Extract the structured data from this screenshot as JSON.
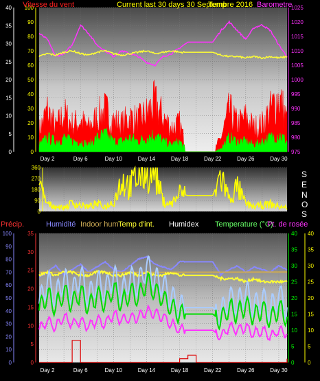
{
  "header": {
    "wind_title": "Vitesse du vent",
    "period_title": "Current last 30 days 30 Septembre 2016",
    "temp_title": "Temp",
    "baro_title": "Barometre"
  },
  "direction_letters": [
    "S",
    "E",
    "N",
    "O",
    "S"
  ],
  "legend2": {
    "precip": "Précip.",
    "humidity": "Humidité",
    "indoor_hum": "Indoor hum",
    "temp_int": "Temp d'int.",
    "humidex": "Humidex",
    "temperature": "Temperature (°C)",
    "dewpoint": "Pt. de rosée"
  },
  "colors": {
    "wind_max": "#ff0000",
    "wind_avg": "#00ff00",
    "barometer": "#ff33ff",
    "temperature": "#ffff33",
    "direction": "#ffff00",
    "humidity": "#8888ff",
    "indoor_hum": "#ccaa55",
    "humidex": "#aaccff",
    "temp_series": "#00dd00",
    "dewpoint": "#ff33ff",
    "precip": "#dd0000"
  },
  "chart_data": [
    {
      "type": "line",
      "panel": "wind-barometer",
      "title": "Vitesse du vent",
      "x_labels": [
        "Day 2",
        "Day 6",
        "Day 10",
        "Day 14",
        "Day 18",
        "Day 22",
        "Day 26",
        "Day 30"
      ],
      "xlim": [
        1,
        31
      ],
      "left_axis": {
        "ticks": [
          0,
          5,
          10,
          15,
          20,
          25,
          30,
          35,
          40
        ],
        "ylim": [
          0,
          40
        ],
        "color": "#ffffff"
      },
      "left_axis2": {
        "ticks": [
          0,
          10,
          20,
          30,
          40,
          50,
          60,
          70,
          80,
          90,
          100
        ],
        "ylim": [
          0,
          100
        ],
        "color": "#ffff00"
      },
      "right_axis": {
        "ticks": [
          975,
          980,
          985,
          990,
          995,
          1000,
          1005,
          1010,
          1015,
          1020,
          1025
        ],
        "ylim": [
          975,
          1025
        ],
        "color": "#ff33ff"
      },
      "series": [
        {
          "name": "Vitesse du vent",
          "axis": "left",
          "style": "band",
          "x": [
            1,
            2,
            3,
            4,
            5,
            6,
            7,
            8,
            9,
            10,
            11,
            12,
            13,
            14,
            15,
            16,
            17,
            18,
            19,
            20,
            21,
            22,
            23,
            24,
            25,
            26,
            27,
            28,
            29,
            30,
            31
          ],
          "values": [
            6,
            12,
            7,
            11,
            8,
            9,
            7,
            10,
            12,
            9,
            8,
            10,
            9,
            11,
            14,
            10,
            7,
            8,
            0,
            0,
            0,
            0,
            4,
            12,
            8,
            10,
            7,
            8,
            12,
            16,
            9
          ]
        },
        {
          "axis": "left",
          "style": "band",
          "x": [
            1,
            2,
            3,
            4,
            5,
            6,
            7,
            8,
            9,
            10,
            11,
            12,
            13,
            14,
            15,
            16,
            17,
            18,
            19,
            20,
            21,
            22,
            23,
            24,
            25,
            26,
            27,
            28,
            29,
            30,
            31
          ],
          "values": [
            2,
            4,
            3,
            4,
            3,
            3,
            2,
            4,
            5,
            3,
            3,
            4,
            3,
            4,
            5,
            3,
            2,
            3,
            0,
            0,
            0,
            0,
            1,
            4,
            3,
            3,
            2,
            3,
            4,
            5,
            3
          ]
        },
        {
          "name": "Barometre",
          "axis": "right",
          "style": "line",
          "x": [
            1,
            2,
            3,
            4,
            5,
            6,
            7,
            8,
            9,
            10,
            11,
            12,
            13,
            14,
            15,
            16,
            17,
            18,
            19,
            20,
            21,
            22,
            23,
            24,
            25,
            26,
            27,
            28,
            29,
            30,
            31
          ],
          "values": [
            1016,
            1014,
            1008,
            1009,
            1012,
            1019,
            1016,
            1012,
            1010,
            1008,
            1010,
            1009,
            1008,
            1006,
            1005,
            1008,
            1009,
            1011,
            1013,
            1013,
            1013,
            1013,
            1017,
            1020,
            1017,
            1014,
            1018,
            1019,
            1017,
            1012,
            1008
          ]
        },
        {
          "name": "Temp",
          "axis": "left2",
          "style": "line",
          "x": [
            1,
            2,
            3,
            4,
            5,
            6,
            7,
            8,
            9,
            10,
            11,
            12,
            13,
            14,
            15,
            16,
            17,
            18,
            19,
            20,
            21,
            22,
            23,
            24,
            25,
            26,
            27,
            28,
            29,
            30,
            31
          ],
          "values": [
            66,
            68,
            67,
            69,
            70,
            68,
            67,
            69,
            70,
            68,
            67,
            68,
            69,
            70,
            68,
            69,
            70,
            69,
            69,
            69,
            69,
            69,
            67,
            66,
            66,
            65,
            66,
            65,
            66,
            65,
            66
          ]
        }
      ]
    },
    {
      "type": "line",
      "panel": "wind-direction",
      "x_labels": [],
      "xlim": [
        1,
        31
      ],
      "left_axis": {
        "ticks": [
          0,
          90,
          180,
          270,
          360
        ],
        "ylim": [
          0,
          360
        ],
        "color": "#ffff00"
      },
      "series": [
        {
          "style": "line",
          "x": [
            1,
            2,
            3,
            4,
            5,
            6,
            7,
            8,
            9,
            10,
            11,
            12,
            13,
            14,
            15,
            16,
            17,
            18,
            19,
            20,
            21,
            22,
            23,
            24,
            25,
            26,
            27,
            28,
            29,
            30,
            31
          ],
          "values": [
            200,
            60,
            40,
            30,
            70,
            50,
            40,
            60,
            40,
            80,
            260,
            200,
            300,
            350,
            340,
            80,
            60,
            150,
            130,
            130,
            130,
            130,
            300,
            100,
            200,
            60,
            40,
            50,
            60,
            40,
            30
          ]
        }
      ]
    },
    {
      "type": "line",
      "panel": "temperature-humidity",
      "x_labels": [
        "Day 2",
        "Day 6",
        "Day 10",
        "Day 14",
        "Day 18",
        "Day 22",
        "Day 26",
        "Day 30"
      ],
      "xlim": [
        1,
        31
      ],
      "left_axis": {
        "ticks": [
          0,
          10,
          20,
          30,
          40,
          50,
          60,
          70,
          80,
          90,
          100
        ],
        "ylim": [
          0,
          100
        ],
        "color": "#8888ff"
      },
      "left_axis2": {
        "ticks": [
          0,
          5,
          10,
          15,
          20,
          25,
          30,
          35
        ],
        "ylim": [
          0,
          35
        ],
        "color": "#ff3333"
      },
      "right_axis": {
        "ticks": [
          0,
          5,
          10,
          15,
          20,
          25,
          30,
          35,
          40
        ],
        "ylim": [
          0,
          40
        ],
        "color": "#00ff00"
      },
      "right_axis2": {
        "ticks": [
          0,
          5,
          10,
          15,
          20,
          25,
          30,
          35,
          40
        ],
        "ylim": [
          0,
          40
        ],
        "color": "#ffff00"
      },
      "series": [
        {
          "name": "Humidité",
          "axis": "left",
          "style": "line",
          "x": [
            1,
            2,
            3,
            4,
            5,
            6,
            7,
            8,
            9,
            10,
            11,
            12,
            13,
            14,
            15,
            16,
            17,
            18,
            19,
            20,
            21,
            22,
            23,
            24,
            25,
            26,
            27,
            28,
            29,
            30,
            31
          ],
          "values": [
            66,
            70,
            75,
            68,
            72,
            76,
            70,
            74,
            78,
            72,
            70,
            75,
            80,
            82,
            76,
            74,
            72,
            78,
            78,
            78,
            78,
            78,
            68,
            72,
            75,
            70,
            74,
            72,
            70,
            75,
            72
          ]
        },
        {
          "name": "Indoor hum",
          "axis": "left",
          "style": "line",
          "x": [
            1,
            31
          ],
          "values": [
            70,
            70
          ]
        },
        {
          "name": "Temp d'int.",
          "axis": "right2",
          "style": "line",
          "x": [
            1,
            2,
            3,
            4,
            5,
            6,
            7,
            8,
            9,
            10,
            11,
            12,
            13,
            14,
            15,
            16,
            17,
            18,
            19,
            20,
            21,
            22,
            23,
            24,
            25,
            26,
            27,
            28,
            29,
            30,
            31
          ],
          "values": [
            27,
            28,
            27,
            28,
            28,
            27,
            27,
            28,
            28,
            27,
            27,
            28,
            27,
            28,
            27,
            27,
            28,
            27,
            27,
            27,
            27,
            27,
            26,
            26,
            26,
            25,
            26,
            25,
            25,
            25,
            25
          ]
        },
        {
          "name": "Humidex",
          "axis": "right",
          "style": "line",
          "x": [
            1,
            2,
            3,
            4,
            5,
            6,
            7,
            8,
            9,
            10,
            11,
            12,
            13,
            14,
            15,
            16,
            17,
            18,
            19,
            20,
            21,
            22,
            23,
            24,
            25,
            26,
            27,
            28,
            29,
            30,
            31
          ],
          "values": [
            18,
            25,
            20,
            26,
            21,
            27,
            20,
            25,
            22,
            27,
            21,
            26,
            24,
            30,
            26,
            24,
            20,
            17,
            17,
            17,
            17,
            17,
            15,
            20,
            18,
            22,
            17,
            20,
            16,
            21,
            17
          ]
        },
        {
          "name": "Temperature (°C)",
          "axis": "right",
          "style": "line",
          "x": [
            1,
            2,
            3,
            4,
            5,
            6,
            7,
            8,
            9,
            10,
            11,
            12,
            13,
            14,
            15,
            16,
            17,
            18,
            19,
            20,
            21,
            22,
            23,
            24,
            25,
            26,
            27,
            28,
            29,
            30,
            31
          ],
          "values": [
            16,
            21,
            17,
            22,
            18,
            22,
            17,
            21,
            18,
            23,
            18,
            22,
            20,
            25,
            22,
            20,
            17,
            15,
            15,
            15,
            15,
            15,
            13,
            17,
            15,
            18,
            14,
            17,
            13,
            17,
            14
          ]
        },
        {
          "name": "Pt. de rosée",
          "axis": "right",
          "style": "line",
          "x": [
            1,
            2,
            3,
            4,
            5,
            6,
            7,
            8,
            9,
            10,
            11,
            12,
            13,
            14,
            15,
            16,
            17,
            18,
            19,
            20,
            21,
            22,
            23,
            24,
            25,
            26,
            27,
            28,
            29,
            30,
            31
          ],
          "values": [
            10,
            13,
            11,
            14,
            12,
            13,
            11,
            13,
            12,
            15,
            13,
            14,
            14,
            16,
            15,
            14,
            12,
            10,
            10,
            10,
            10,
            10,
            8,
            11,
            10,
            11,
            9,
            10,
            8,
            10,
            9
          ]
        },
        {
          "name": "Précip.",
          "axis": "left2",
          "style": "step",
          "x": [
            1,
            2,
            3,
            4,
            5,
            6,
            7,
            8,
            9,
            10,
            11,
            12,
            13,
            14,
            15,
            16,
            17,
            18,
            19,
            20,
            21,
            22,
            23,
            24,
            25,
            26,
            27,
            28,
            29,
            30,
            31
          ],
          "values": [
            0,
            0,
            0,
            0,
            6,
            0,
            0,
            0,
            0,
            0,
            0,
            0,
            0,
            0,
            0,
            0,
            0,
            1,
            2,
            0,
            0,
            0,
            0,
            0,
            0,
            0,
            0,
            0,
            0,
            0,
            1
          ]
        }
      ]
    }
  ]
}
